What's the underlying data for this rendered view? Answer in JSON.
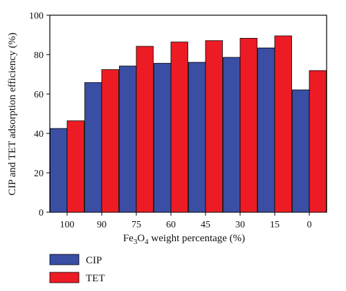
{
  "chart_data": {
    "type": "bar",
    "categories": [
      "100",
      "90",
      "75",
      "60",
      "45",
      "30",
      "15",
      "0"
    ],
    "series": [
      {
        "name": "CIP",
        "values": [
          42.5,
          65.8,
          74.2,
          75.6,
          76.1,
          78.6,
          83.4,
          62.1
        ],
        "color": "#3a4ea3"
      },
      {
        "name": "TET",
        "values": [
          46.4,
          72.4,
          84.2,
          86.4,
          87.1,
          88.3,
          89.5,
          71.9
        ],
        "color": "#ed1c24"
      }
    ],
    "xlabel_parts": {
      "a": "Fe",
      "sub1": "3",
      "b": "O",
      "sub2": "4",
      "c": " weight percentage (%)"
    },
    "ylabel": "CIP and TET adsorption efficiency (%)",
    "ylim": [
      0,
      100
    ],
    "yticks": [
      "0",
      "20",
      "40",
      "60",
      "80",
      "100"
    ],
    "grid": false,
    "legend_position": "bottom-left"
  }
}
